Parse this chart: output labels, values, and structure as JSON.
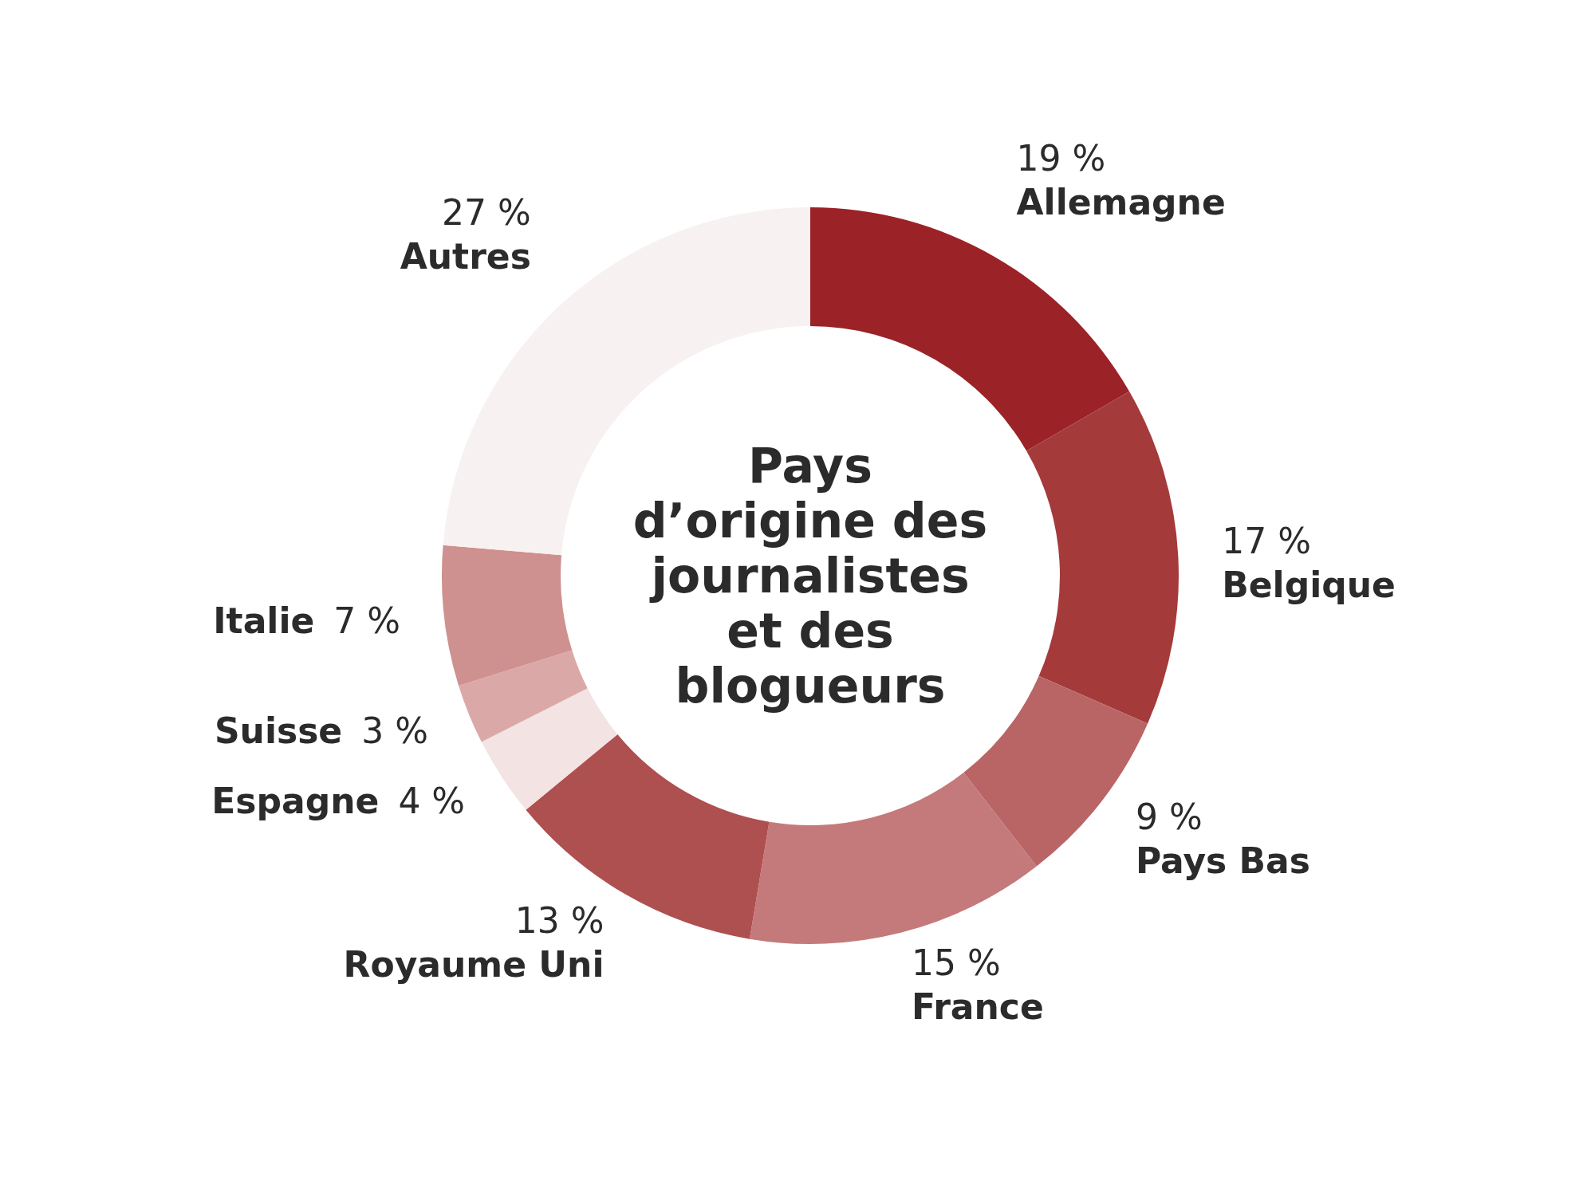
{
  "chart_data": {
    "type": "donut",
    "title": "Pays d’origine des journalistes et des blogueurs",
    "categories": [
      "Allemagne",
      "Belgique",
      "Pays Bas",
      "France",
      "Royaume Uni",
      "Espagne",
      "Suisse",
      "Italie",
      "Autres"
    ],
    "values": [
      19,
      17,
      9,
      15,
      13,
      4,
      3,
      7,
      27
    ],
    "value_labels": [
      "19 %",
      "17 %",
      "9 %",
      "15 %",
      "13 %",
      "4 %",
      "3 %",
      "7 %",
      "27 %"
    ],
    "colors": [
      "#9b2226",
      "#a53a3b",
      "#b96566",
      "#c47a7a",
      "#ae4f50",
      "#f3e3e3",
      "#dba8a8",
      "#cf9090",
      "#f8f1f1"
    ]
  }
}
